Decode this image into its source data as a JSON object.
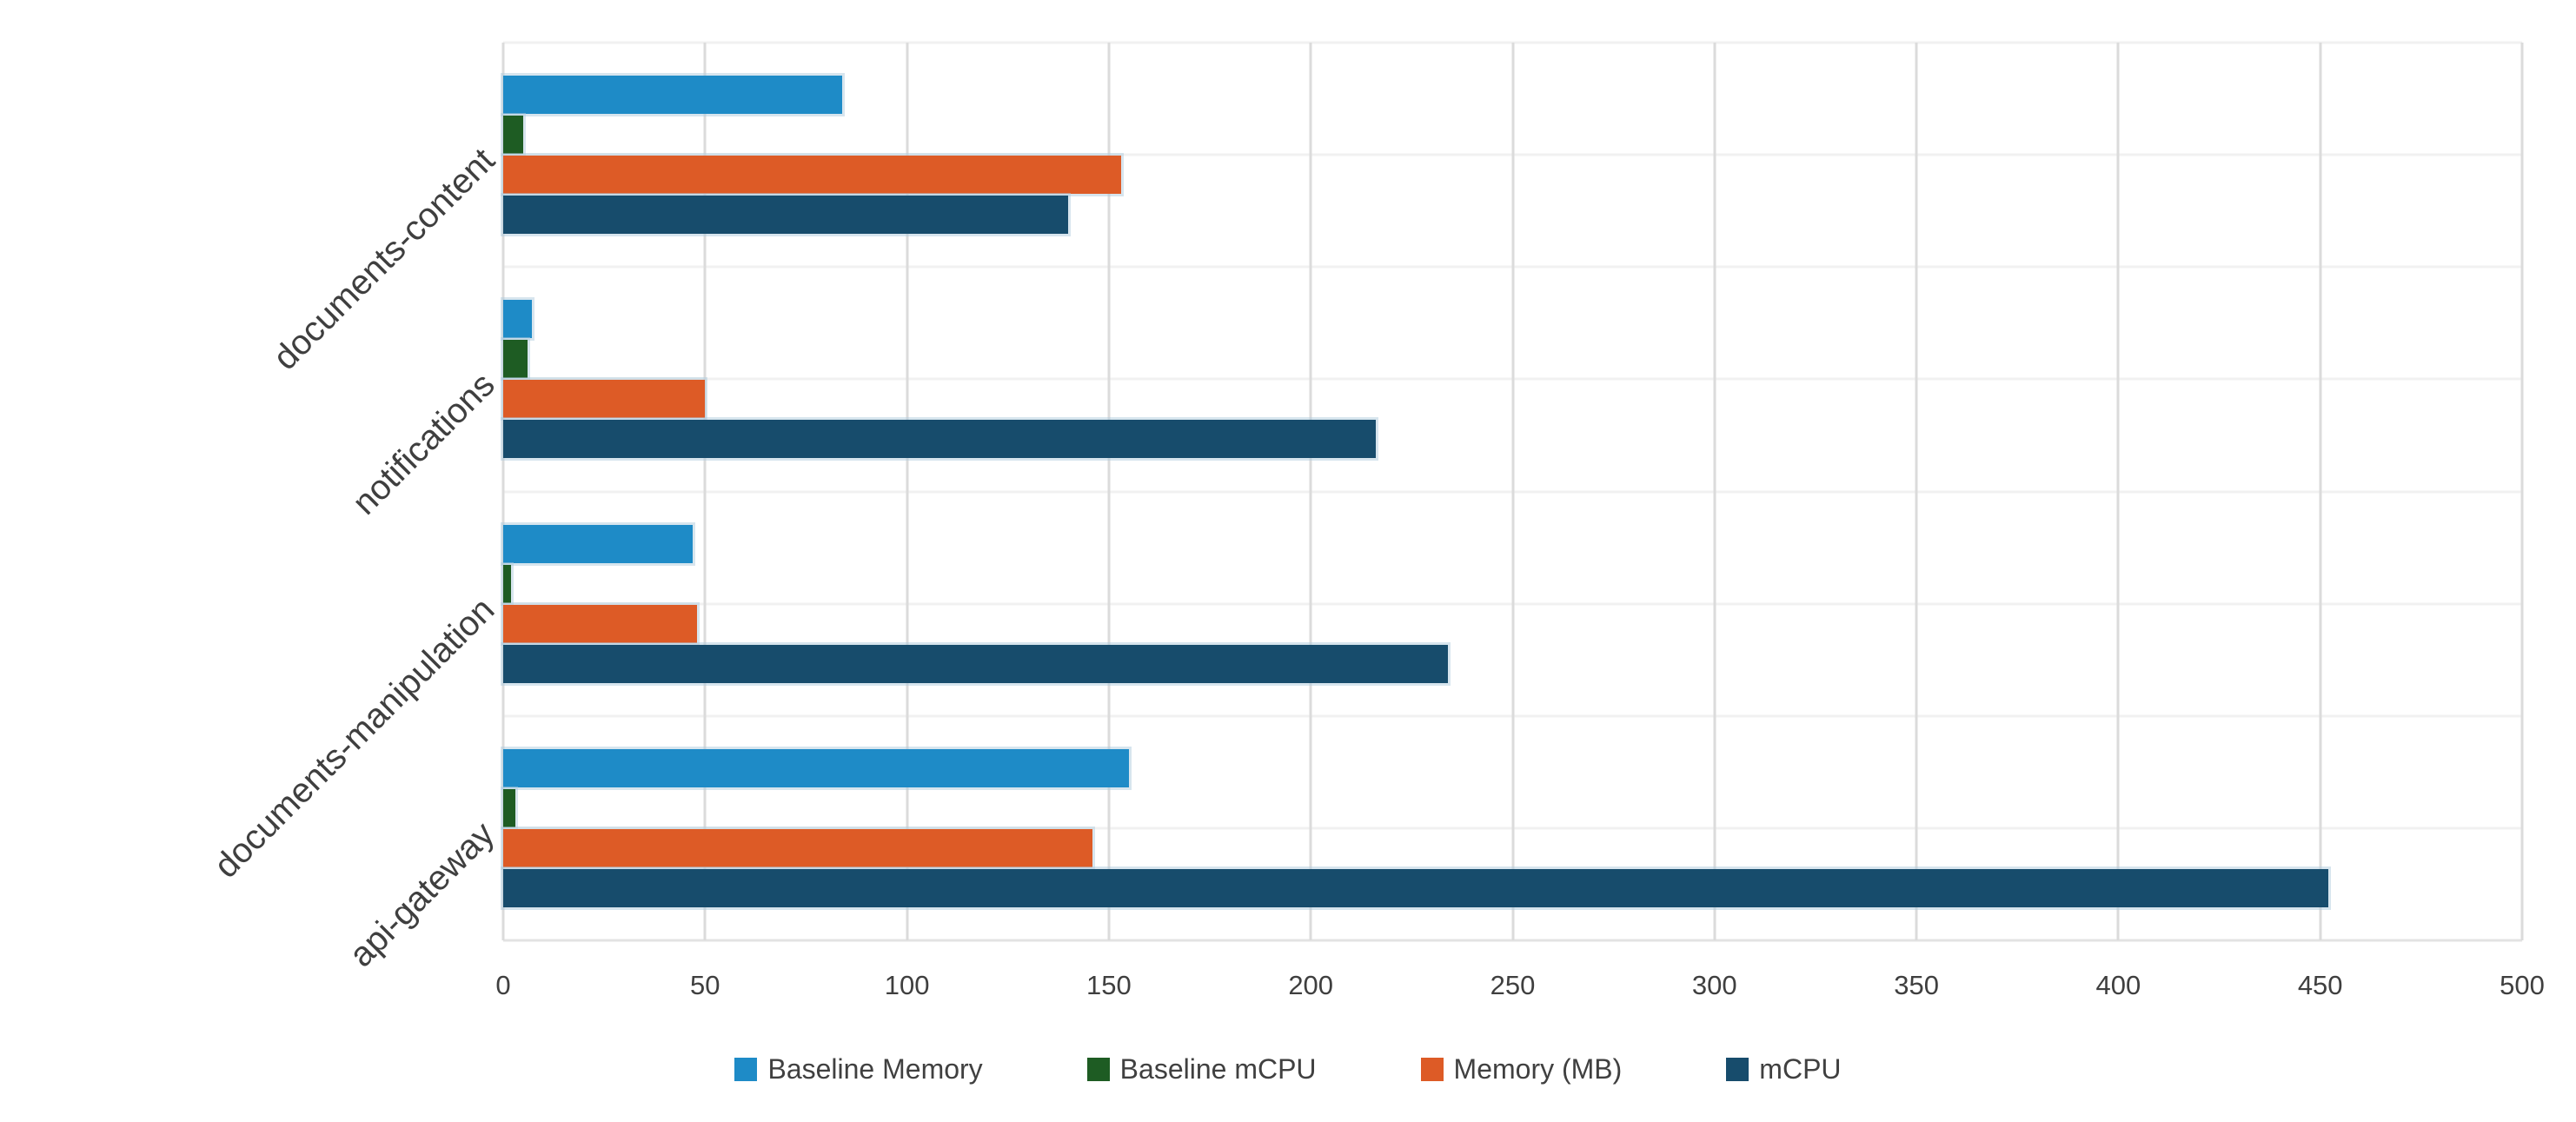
{
  "chart_data": {
    "type": "bar",
    "orientation": "horizontal",
    "title": "",
    "categories": [
      "documents-content",
      "notifications",
      "documents-manipulation",
      "api-gateway"
    ],
    "series": [
      {
        "name": "Baseline Memory",
        "color": "#1E8BC7",
        "values": [
          84,
          7,
          47,
          155
        ]
      },
      {
        "name": "Baseline mCPU",
        "color": "#1E5C23",
        "values": [
          5,
          6,
          2,
          3
        ]
      },
      {
        "name": "Memory (MB)",
        "color": "#DD5B26",
        "values": [
          153,
          50,
          48,
          146
        ]
      },
      {
        "name": "mCPU",
        "color": "#174C6C",
        "values": [
          140,
          216,
          234,
          452
        ]
      }
    ],
    "xlim": [
      0,
      500
    ],
    "xticks": [
      0,
      50,
      100,
      150,
      200,
      250,
      300,
      350,
      400,
      450,
      500
    ],
    "grid": {
      "vertical": true,
      "horizontal": true
    },
    "legend_position": "bottom",
    "legend_labels": [
      "Baseline Memory",
      "Baseline mCPU",
      "Memory (MB)",
      "mCPU"
    ]
  },
  "colors": {
    "background": "#FFFFFF",
    "vertical_gridline": "#DBDBDB",
    "horizontal_gridline": "#F1F1F1",
    "axis_line": "#E3E3E3",
    "text": "#404040",
    "bar_halo": "rgba(176,203,222,0.5)"
  }
}
